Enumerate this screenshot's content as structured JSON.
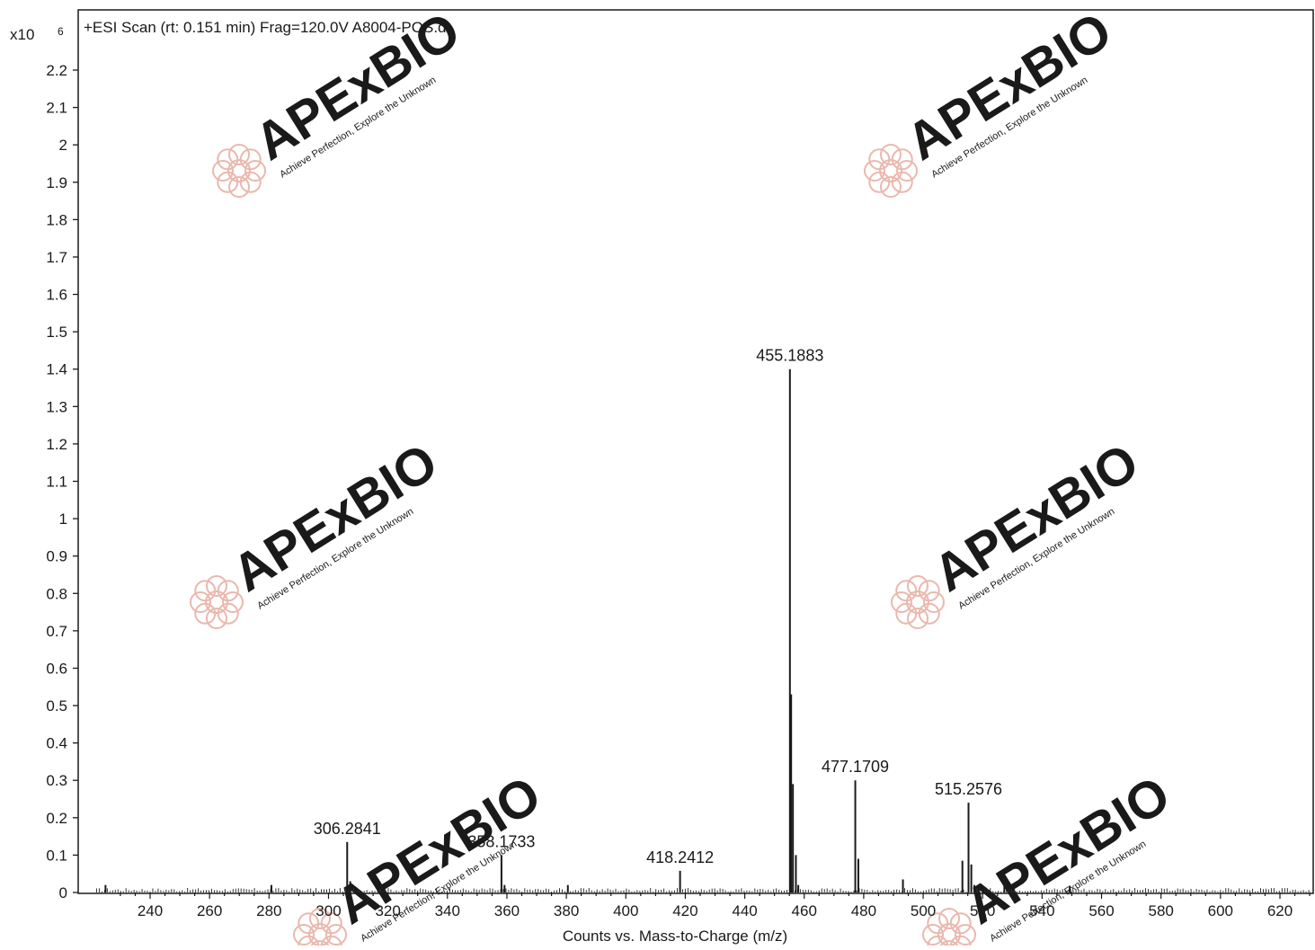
{
  "chart_data": {
    "type": "bar",
    "title": "+ESI Scan (rt: 0.151 min) Frag=120.0V A8004-POS.d",
    "xlabel": "Counts vs. Mass-to-Charge (m/z)",
    "ylabel": "",
    "y_multiplier_label": "x10",
    "y_multiplier_exponent": "6",
    "xlim": [
      221,
      632
    ],
    "ylim": [
      0,
      2.3
    ],
    "x_ticks": [
      240,
      260,
      280,
      300,
      320,
      340,
      360,
      380,
      400,
      420,
      440,
      460,
      480,
      500,
      520,
      540,
      560,
      580,
      600,
      620
    ],
    "y_ticks": [
      0,
      0.1,
      0.2,
      0.3,
      0.4,
      0.5,
      0.6,
      0.7,
      0.8,
      0.9,
      1,
      1.1,
      1.2,
      1.3,
      1.4,
      1.5,
      1.6,
      1.7,
      1.8,
      1.9,
      2,
      2.1,
      2.2
    ],
    "grid": false,
    "peaks": [
      {
        "x": 225.0,
        "y": 0.02
      },
      {
        "x": 280.8,
        "y": 0.02
      },
      {
        "x": 306.2841,
        "y": 0.135,
        "label": "306.2841"
      },
      {
        "x": 307.3,
        "y": 0.03
      },
      {
        "x": 358.1733,
        "y": 0.1,
        "label": "358.1733"
      },
      {
        "x": 359.2,
        "y": 0.02
      },
      {
        "x": 380.5,
        "y": 0.02
      },
      {
        "x": 418.2412,
        "y": 0.058,
        "label": "418.2412"
      },
      {
        "x": 455.1883,
        "y": 1.4,
        "label": "455.1883"
      },
      {
        "x": 455.6,
        "y": 0.53
      },
      {
        "x": 456.2,
        "y": 0.29
      },
      {
        "x": 457.2,
        "y": 0.1
      },
      {
        "x": 458.0,
        "y": 0.02
      },
      {
        "x": 477.1709,
        "y": 0.3,
        "label": "477.1709"
      },
      {
        "x": 478.2,
        "y": 0.09
      },
      {
        "x": 493.2,
        "y": 0.035
      },
      {
        "x": 513.2,
        "y": 0.085
      },
      {
        "x": 515.2576,
        "y": 0.24,
        "label": "515.2576"
      },
      {
        "x": 516.2,
        "y": 0.075
      },
      {
        "x": 517.2,
        "y": 0.02
      },
      {
        "x": 527.3,
        "y": 0.025
      },
      {
        "x": 549.3,
        "y": 0.018
      }
    ]
  },
  "watermark": {
    "brand": "APExBIO",
    "tagline": "Achieve Perfection, Explore the Unknown",
    "text_color": "#c9d0dc",
    "accent_color": "#f3c99c",
    "logo_color": "#eab8ad"
  },
  "colors": {
    "axis": "#1a1a1a",
    "peak": "#1a1a1a",
    "background": "#ffffff"
  }
}
